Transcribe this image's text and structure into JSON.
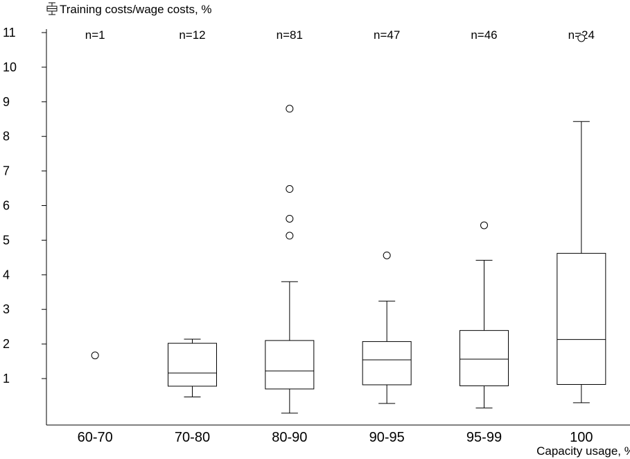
{
  "chart_data": {
    "type": "boxplot",
    "ylabel": "Training costs/wage costs, %",
    "xlabel": "Capacity usage, %",
    "y_ticks": [
      1,
      2,
      3,
      4,
      5,
      6,
      7,
      8,
      9,
      10,
      11
    ],
    "ylim": [
      -0.25,
      11.1
    ],
    "grid": false,
    "legend_icon": "boxplot-icon",
    "groups": [
      {
        "category": "60-70",
        "n_label": "n=1",
        "whisker_low": null,
        "q1": null,
        "median": null,
        "q3": null,
        "whisker_high": null,
        "outliers": [
          1.67
        ]
      },
      {
        "category": "70-80",
        "n_label": "n=12",
        "whisker_low": 0.47,
        "q1": 0.78,
        "median": 1.16,
        "q3": 2.02,
        "whisker_high": 2.14,
        "outliers": []
      },
      {
        "category": "80-90",
        "n_label": "n=81",
        "whisker_low": 0.0,
        "q1": 0.7,
        "median": 1.22,
        "q3": 2.1,
        "whisker_high": 3.8,
        "outliers": [
          5.13,
          5.62,
          6.48,
          8.8
        ]
      },
      {
        "category": "90-95",
        "n_label": "n=47",
        "whisker_low": 0.28,
        "q1": 0.82,
        "median": 1.54,
        "q3": 2.07,
        "whisker_high": 3.24,
        "outliers": [
          4.56
        ]
      },
      {
        "category": "95-99",
        "n_label": "n=46",
        "whisker_low": 0.15,
        "q1": 0.79,
        "median": 1.56,
        "q3": 2.39,
        "whisker_high": 4.42,
        "outliers": [
          5.43
        ]
      },
      {
        "category": "100",
        "n_label": "n=24",
        "whisker_low": 0.3,
        "q1": 0.83,
        "median": 2.13,
        "q3": 4.62,
        "whisker_high": 8.43,
        "outliers": [
          10.84
        ]
      }
    ]
  }
}
